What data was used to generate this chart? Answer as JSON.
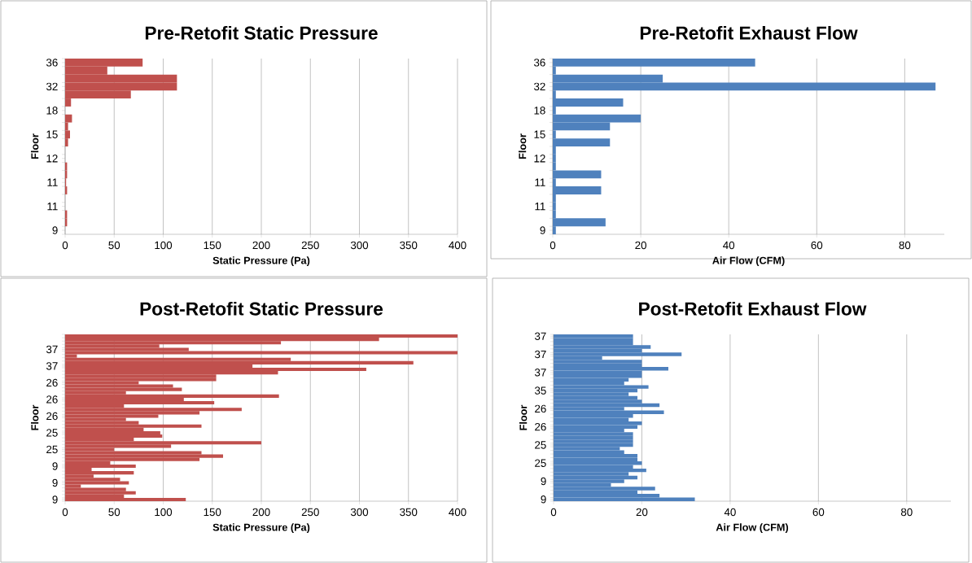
{
  "chart_data": [
    {
      "type": "bar",
      "orientation": "horizontal",
      "title": "Pre-Retofit Static Pressure",
      "xlabel": "Static Pressure (Pa)",
      "ylabel": "Floor",
      "color": "#c0504d",
      "grid": "x",
      "categories": [
        "36",
        null,
        null,
        "32",
        null,
        null,
        "18",
        null,
        null,
        "15",
        null,
        null,
        "12",
        null,
        null,
        "11",
        null,
        null,
        "11",
        null,
        null,
        "9"
      ],
      "values": [
        79,
        43,
        114,
        114,
        67,
        6,
        0,
        7,
        3,
        5,
        3,
        0,
        0,
        2,
        2,
        1,
        2,
        0,
        0,
        2,
        2,
        0
      ],
      "xlim": [
        0,
        400
      ],
      "xticks": [
        0,
        50,
        100,
        150,
        200,
        250,
        300,
        350,
        400
      ]
    },
    {
      "type": "bar",
      "orientation": "horizontal",
      "title": "Pre-Retofit Exhaust Flow",
      "xlabel": "Air Flow (CFM)",
      "ylabel": "Floor",
      "color": "#4f81bd",
      "grid": "x",
      "categories": [
        "36",
        null,
        null,
        "32",
        null,
        null,
        "18",
        null,
        null,
        "15",
        null,
        null,
        "12",
        null,
        null,
        "11",
        null,
        null,
        "11",
        null,
        null,
        "9"
      ],
      "values": [
        46,
        0.7,
        25,
        87,
        0.7,
        16,
        0.7,
        20,
        13,
        0.7,
        13,
        0.7,
        0.7,
        0.7,
        11,
        0.7,
        11,
        0.7,
        0.7,
        0.7,
        12,
        0.7
      ],
      "xlim": [
        0,
        89
      ],
      "xticks": [
        0,
        20,
        40,
        60,
        80
      ]
    },
    {
      "type": "bar",
      "orientation": "horizontal",
      "title": "Post-Retofit Static Pressure",
      "xlabel": "Static Pressure (Pa)",
      "ylabel": "Floor",
      "color": "#c0504d",
      "grid": "x",
      "categories": [
        null,
        null,
        null,
        null,
        "37",
        null,
        null,
        null,
        null,
        "37",
        null,
        null,
        null,
        null,
        "26",
        null,
        null,
        null,
        null,
        "26",
        null,
        null,
        null,
        null,
        "26",
        null,
        null,
        null,
        null,
        "25",
        null,
        null,
        null,
        null,
        "25",
        null,
        null,
        null,
        null,
        "9",
        null,
        null,
        null,
        null,
        "9",
        null,
        null,
        null,
        null,
        "9"
      ],
      "values": [
        400,
        320,
        220,
        96,
        126,
        400,
        12,
        230,
        355,
        191,
        307,
        217,
        154,
        154,
        75,
        110,
        119,
        62,
        218,
        121,
        152,
        60,
        180,
        137,
        95,
        62,
        75,
        139,
        80,
        97,
        99,
        70,
        200,
        108,
        50,
        139,
        161,
        137,
        46,
        72,
        27,
        70,
        29,
        56,
        65,
        16,
        62,
        72,
        60,
        123
      ],
      "xlim": [
        0,
        400
      ],
      "xticks": [
        0,
        50,
        100,
        150,
        200,
        250,
        300,
        350,
        400
      ]
    },
    {
      "type": "bar",
      "orientation": "horizontal",
      "title": "Post-Retofit Exhaust Flow",
      "xlabel": "Air Flow (CFM)",
      "ylabel": "Floor",
      "color": "#4f81bd",
      "grid": "x",
      "categories": [
        "37",
        null,
        null,
        null,
        null,
        "37",
        null,
        null,
        null,
        null,
        "37",
        null,
        null,
        null,
        null,
        "35",
        null,
        null,
        null,
        null,
        "26",
        null,
        null,
        null,
        null,
        "26",
        null,
        null,
        null,
        null,
        "25",
        null,
        null,
        null,
        null,
        "25",
        null,
        null,
        null,
        null,
        "9",
        null,
        null,
        null,
        null,
        "9"
      ],
      "values": [
        18,
        18,
        18,
        22,
        20,
        29,
        11,
        20,
        20,
        26,
        20,
        20,
        17,
        16,
        21.5,
        19,
        17,
        19,
        20,
        24,
        16,
        25,
        18,
        17,
        20,
        19,
        16,
        18,
        18,
        18,
        18,
        15,
        16,
        19,
        19,
        20,
        18,
        21,
        17,
        19,
        16,
        13,
        23,
        19,
        24,
        32
      ],
      "xlim": [
        0,
        90
      ],
      "xticks": [
        0,
        20,
        40,
        60,
        80
      ]
    }
  ]
}
